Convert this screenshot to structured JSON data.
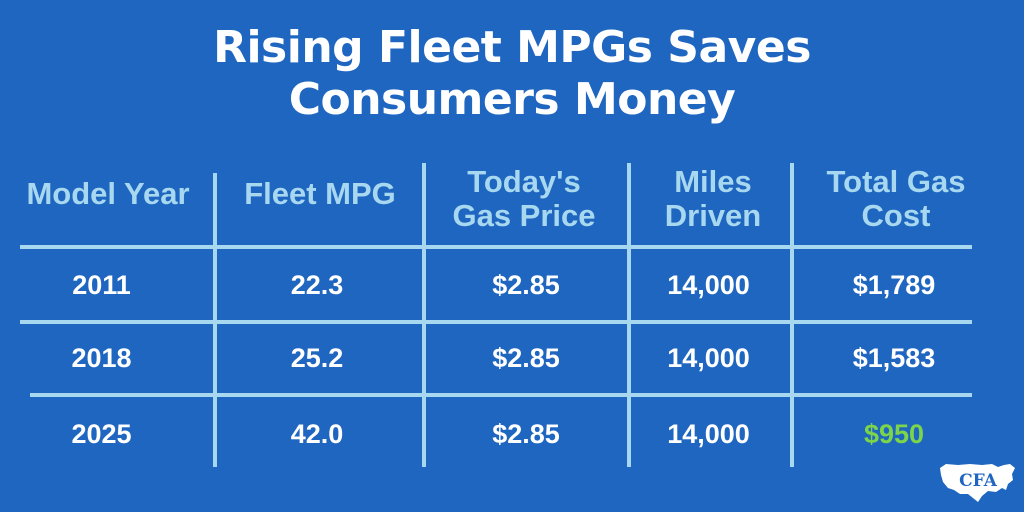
{
  "title": {
    "line1": "Rising Fleet MPGs Saves",
    "line2": "Consumers Money"
  },
  "table": {
    "headers": [
      {
        "line1": "Model Year",
        "line2": ""
      },
      {
        "line1": "Fleet MPG",
        "line2": ""
      },
      {
        "line1": "Today's",
        "line2": "Gas Price"
      },
      {
        "line1": "Miles",
        "line2": "Driven"
      },
      {
        "line1": "Total Gas",
        "line2": "Cost"
      }
    ],
    "rows": [
      [
        "2011",
        "22.3",
        "$2.85",
        "14,000",
        "$1,789"
      ],
      [
        "2018",
        "25.2",
        "$2.85",
        "14,000",
        "$1,583"
      ],
      [
        "2025",
        "42.0",
        "$2.85",
        "14,000",
        "$950"
      ]
    ],
    "highlight_color": "#7bd44a"
  },
  "logo": {
    "text": "CFA"
  },
  "colors": {
    "background": "#1f66c1",
    "header_text": "#a8d8f0",
    "lines": "#a8d8f0",
    "cell_text": "#ffffff"
  }
}
